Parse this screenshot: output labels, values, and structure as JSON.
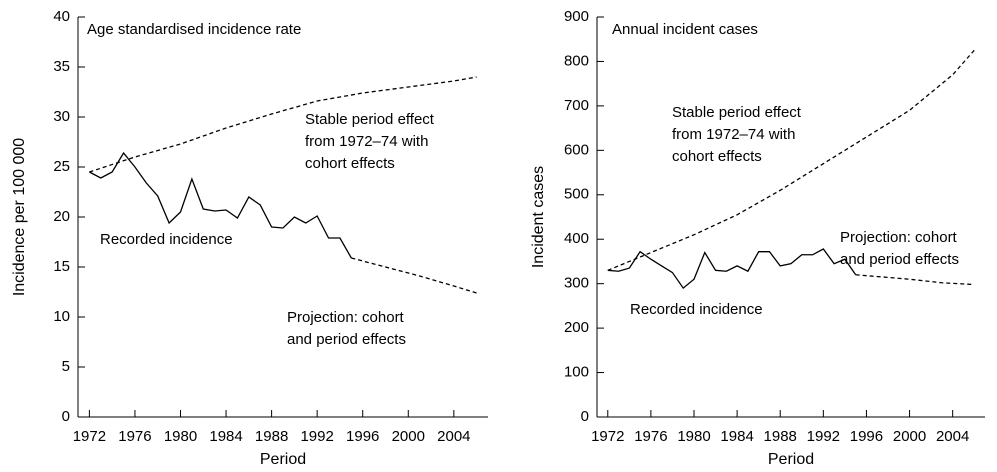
{
  "chart_data": [
    {
      "type": "line",
      "y_label": "Incidence per 100 000",
      "x_label": "Period",
      "annotations": [
        [
          "Age standardised incidence rate"
        ],
        [
          "Stable period effect",
          "from 1972–74 with",
          "cohort effects"
        ],
        [
          "Recorded incidence"
        ],
        [
          "Projection: cohort",
          "and period effects"
        ]
      ],
      "xlim": [
        1971,
        2007
      ],
      "xticks": [
        1972,
        1976,
        1980,
        1984,
        1988,
        1992,
        1996,
        2000,
        2004
      ],
      "ylim": [
        0,
        40
      ],
      "yticks": [
        0,
        5,
        10,
        15,
        20,
        25,
        30,
        35,
        40
      ],
      "color": "#000000",
      "series": [
        {
          "style": "solid",
          "x": [
            1972,
            1973,
            1974,
            1975,
            1976,
            1977,
            1978,
            1979,
            1980,
            1981,
            1982,
            1983,
            1984,
            1985,
            1986,
            1987,
            1988,
            1989,
            1990,
            1991,
            1992,
            1993,
            1994,
            1995
          ],
          "values": [
            24.5,
            23.9,
            24.5,
            26.4,
            25.0,
            23.4,
            22.1,
            19.4,
            20.5,
            23.8,
            20.8,
            20.6,
            20.7,
            19.9,
            22.0,
            21.2,
            19.0,
            18.9,
            20.0,
            19.4,
            20.1,
            17.9,
            17.9,
            15.9
          ]
        },
        {
          "style": "dashed",
          "x": [
            1995,
            1998,
            2001,
            2004,
            2006
          ],
          "values": [
            15.9,
            15.0,
            14.1,
            13.1,
            12.4
          ]
        },
        {
          "style": "dashed",
          "x": [
            1972,
            1976,
            1980,
            1984,
            1988,
            1992,
            1996,
            2000,
            2004,
            2006
          ],
          "values": [
            24.5,
            26.0,
            27.3,
            28.9,
            30.3,
            31.6,
            32.4,
            33.0,
            33.6,
            34.0
          ]
        }
      ]
    },
    {
      "type": "line",
      "y_label": "Incident cases",
      "x_label": "Period",
      "annotations": [
        [
          "Annual incident cases"
        ],
        [
          "Stable period effect",
          "from 1972–74 with",
          "cohort effects"
        ],
        [
          "Recorded incidence"
        ],
        [
          "Projection: cohort",
          "and period effects"
        ]
      ],
      "xlim": [
        1971,
        2007
      ],
      "xticks": [
        1972,
        1976,
        1980,
        1984,
        1988,
        1992,
        1996,
        2000,
        2004
      ],
      "ylim": [
        0,
        900
      ],
      "yticks": [
        0,
        100,
        200,
        300,
        400,
        500,
        600,
        700,
        800,
        900
      ],
      "color": "#000000",
      "series": [
        {
          "style": "solid",
          "x": [
            1972,
            1973,
            1974,
            1975,
            1976,
            1977,
            1978,
            1979,
            1980,
            1981,
            1982,
            1983,
            1984,
            1985,
            1986,
            1987,
            1988,
            1989,
            1990,
            1991,
            1992,
            1993,
            1994,
            1995
          ],
          "values": [
            330,
            328,
            335,
            372,
            355,
            340,
            325,
            290,
            310,
            370,
            330,
            328,
            340,
            328,
            372,
            372,
            340,
            345,
            365,
            365,
            378,
            345,
            355,
            320
          ]
        },
        {
          "style": "dashed",
          "x": [
            1995,
            2000,
            2003,
            2006
          ],
          "values": [
            320,
            310,
            302,
            298
          ]
        },
        {
          "style": "dashed",
          "x": [
            1972,
            1976,
            1980,
            1984,
            1988,
            1992,
            1996,
            2000,
            2004,
            2006
          ],
          "values": [
            330,
            370,
            410,
            455,
            510,
            570,
            630,
            690,
            770,
            825
          ]
        }
      ]
    }
  ]
}
